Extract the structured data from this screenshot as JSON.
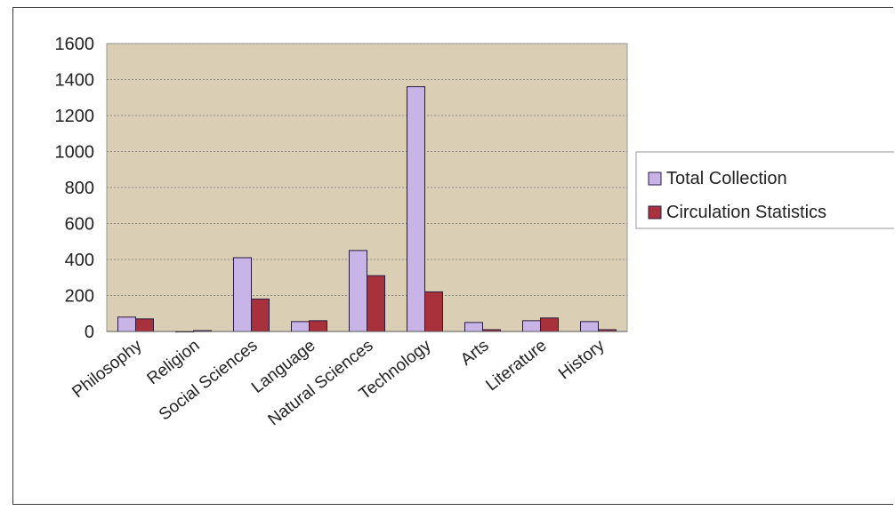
{
  "chart_data": {
    "type": "bar",
    "title": "",
    "xlabel": "",
    "ylabel": "",
    "categories": [
      "Philosophy",
      "Religion",
      "Social Sciences",
      "Language",
      "Natural Sciences",
      "Technology",
      "Arts",
      "Literature",
      "History"
    ],
    "series": [
      {
        "name": "Total Collection",
        "values": [
          80,
          0,
          410,
          55,
          450,
          1360,
          50,
          60,
          55
        ],
        "color": "#c8b4e6"
      },
      {
        "name": "Circulation Statistics",
        "values": [
          70,
          5,
          180,
          60,
          310,
          220,
          10,
          75,
          10
        ],
        "color": "#a8323c"
      }
    ],
    "ylim": [
      0,
      1600
    ],
    "yticks": [
      0,
      200,
      400,
      600,
      800,
      1000,
      1200,
      1400,
      1600
    ],
    "grid": true,
    "legend_position": "right",
    "plot_background": "#dacfb4",
    "gridline_color": "#8a8a8a"
  }
}
